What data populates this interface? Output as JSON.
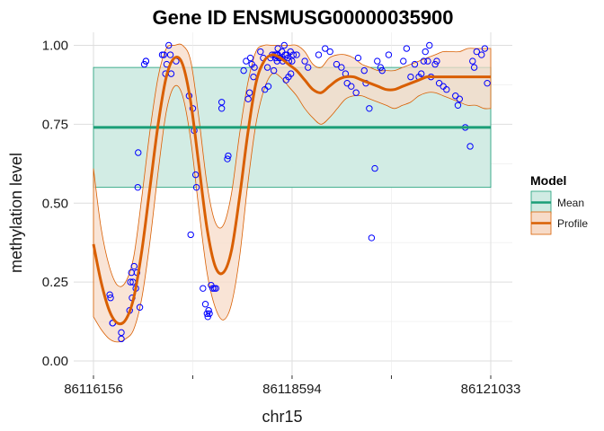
{
  "chart_data": {
    "type": "scatter",
    "title": "Gene ID ENSMUSG00000035900",
    "xlabel": "chr15",
    "ylabel": "methylation level",
    "xlim": [
      86116156,
      86121033
    ],
    "ylim": [
      0,
      1
    ],
    "x_ticks": [
      86116156,
      86118594,
      86121033
    ],
    "x_tick_labels": [
      "86116156",
      "86118594",
      "86121033"
    ],
    "y_ticks": [
      0,
      0.25,
      0.5,
      0.75,
      1
    ],
    "y_tick_labels": [
      "0.00",
      "0.25",
      "0.50",
      "0.75",
      "1.00"
    ],
    "grid": true,
    "legend": {
      "title": "Model",
      "position": "right",
      "entries": [
        "Mean",
        "Profile"
      ]
    },
    "colors": {
      "points": "#0000ff",
      "mean": "#1b9e77",
      "mean_band": "#d0ebe3",
      "profile": "#d95f02",
      "profile_band": "#f7dbc8"
    },
    "mean": {
      "value": 0.74,
      "lower": 0.55,
      "upper": 0.93
    },
    "profile": {
      "x": [
        86116156,
        86116250,
        86116350,
        86116450,
        86116550,
        86116650,
        86116750,
        86116850,
        86116950,
        86117050,
        86117150,
        86117250,
        86117350,
        86117450,
        86117550,
        86117650,
        86117750,
        86117850,
        86117950,
        86118050,
        86118150,
        86118250,
        86118350,
        86118450,
        86118550,
        86118650,
        86118750,
        86118850,
        86118950,
        86119050,
        86119150,
        86119250,
        86119350,
        86119450,
        86119550,
        86119650,
        86119750,
        86119850,
        86119950,
        86120050,
        86120150,
        86120250,
        86120350,
        86120450,
        86120550,
        86120650,
        86120750,
        86120850,
        86120950,
        86121033
      ],
      "y": [
        0.37,
        0.25,
        0.16,
        0.12,
        0.13,
        0.2,
        0.35,
        0.55,
        0.75,
        0.9,
        0.96,
        0.94,
        0.82,
        0.62,
        0.42,
        0.3,
        0.28,
        0.35,
        0.52,
        0.72,
        0.88,
        0.95,
        0.97,
        0.96,
        0.94,
        0.92,
        0.89,
        0.86,
        0.85,
        0.87,
        0.89,
        0.9,
        0.9,
        0.89,
        0.88,
        0.87,
        0.86,
        0.86,
        0.87,
        0.88,
        0.89,
        0.9,
        0.9,
        0.9,
        0.9,
        0.9,
        0.9,
        0.9,
        0.9,
        0.9
      ],
      "lower": [
        0.14,
        0.1,
        0.07,
        0.06,
        0.07,
        0.1,
        0.2,
        0.38,
        0.6,
        0.79,
        0.87,
        0.84,
        0.7,
        0.48,
        0.28,
        0.17,
        0.13,
        0.18,
        0.33,
        0.56,
        0.75,
        0.86,
        0.91,
        0.9,
        0.87,
        0.84,
        0.8,
        0.77,
        0.75,
        0.77,
        0.8,
        0.83,
        0.84,
        0.84,
        0.83,
        0.82,
        0.81,
        0.8,
        0.81,
        0.82,
        0.84,
        0.85,
        0.85,
        0.84,
        0.83,
        0.82,
        0.81,
        0.81,
        0.8,
        0.8
      ],
      "upper": [
        0.61,
        0.42,
        0.3,
        0.24,
        0.25,
        0.33,
        0.52,
        0.73,
        0.9,
        0.99,
        1.0,
        1.0,
        0.95,
        0.77,
        0.56,
        0.44,
        0.43,
        0.53,
        0.72,
        0.88,
        0.98,
        1.0,
        1.0,
        1.0,
        1.0,
        1.0,
        0.98,
        0.94,
        0.93,
        0.96,
        0.97,
        0.97,
        0.96,
        0.94,
        0.93,
        0.92,
        0.92,
        0.92,
        0.93,
        0.94,
        0.95,
        0.96,
        0.97,
        0.98,
        0.98,
        0.98,
        0.99,
        0.99,
        0.99,
        0.99
      ]
    },
    "points": {
      "x": [
        86116356,
        86116366,
        86116390,
        86116392,
        86116498,
        86116498,
        86116600,
        86116610,
        86116622,
        86116630,
        86116640,
        86116655,
        86116676,
        86116690,
        86116700,
        86116705,
        86116725,
        86116780,
        86116800,
        86116800,
        86117000,
        86117020,
        86117040,
        86117055,
        86117080,
        86117100,
        86117110,
        86117170,
        86117330,
        86117350,
        86117375,
        86117392,
        86117410,
        86117420,
        86117500,
        86117530,
        86117550,
        86117560,
        86117570,
        86117580,
        86117600,
        86117620,
        86117640,
        86117660,
        86117730,
        86117730,
        86117800,
        86117810,
        86118000,
        86118030,
        86118055,
        86118072,
        86118082,
        86118100,
        86118120,
        86118132,
        86118206,
        86118240,
        86118260,
        86118292,
        86118302,
        86118330,
        86118350,
        86118370,
        86118380,
        86118390,
        86118400,
        86118410,
        86118420,
        86118420,
        86118435,
        86118440,
        86118446,
        86118470,
        86118480,
        86118498,
        86118510,
        86118520,
        86118530,
        86118540,
        86118550,
        86118555,
        86118575,
        86118580,
        86118593,
        86118610,
        86118650,
        86118750,
        86118790,
        86118920,
        86119000,
        86119060,
        86119140,
        86119200,
        86119250,
        86119270,
        86119320,
        86119380,
        86119405,
        86119480,
        86119500,
        86119542,
        86119570,
        86119610,
        86119640,
        86119680,
        86119700,
        86119780,
        86119960,
        86120000,
        86120050,
        86120100,
        86120150,
        86120180,
        86120210,
        86120230,
        86120260,
        86120280,
        86120300,
        86120350,
        86120370,
        86120400,
        86120450,
        86120490,
        86120600,
        86120630,
        86120650,
        86120720,
        86120780,
        86120810,
        86120830,
        86120860,
        86120920,
        86120960,
        86120990
      ],
      "y": [
        0.21,
        0.2,
        0.12,
        0.12,
        0.09,
        0.07,
        0.16,
        0.25,
        0.28,
        0.2,
        0.25,
        0.3,
        0.23,
        0.28,
        0.55,
        0.66,
        0.17,
        0.94,
        0.95,
        0.95,
        0.97,
        0.97,
        0.91,
        0.94,
        1.0,
        0.97,
        0.91,
        0.95,
        0.84,
        0.4,
        0.8,
        0.73,
        0.59,
        0.55,
        0.23,
        0.18,
        0.15,
        0.14,
        0.16,
        0.15,
        0.24,
        0.23,
        0.23,
        0.23,
        0.8,
        0.82,
        0.64,
        0.65,
        0.92,
        0.95,
        0.83,
        0.85,
        0.96,
        0.94,
        0.9,
        0.93,
        0.98,
        0.96,
        0.86,
        0.93,
        0.87,
        0.96,
        0.97,
        0.92,
        0.97,
        0.96,
        0.97,
        0.95,
        0.97,
        0.99,
        0.96,
        0.96,
        0.96,
        0.98,
        0.95,
        1.0,
        0.97,
        0.89,
        0.97,
        0.96,
        0.9,
        0.95,
        0.98,
        0.91,
        0.95,
        0.97,
        0.97,
        0.95,
        0.93,
        0.97,
        0.99,
        0.98,
        0.94,
        0.93,
        0.91,
        0.88,
        0.87,
        0.85,
        0.96,
        0.92,
        0.88,
        0.8,
        0.39,
        0.61,
        0.95,
        0.93,
        0.92,
        0.97,
        0.95,
        0.99,
        0.9,
        0.94,
        0.9,
        0.91,
        0.95,
        0.98,
        0.95,
        1.0,
        0.9,
        0.94,
        0.95,
        0.88,
        0.87,
        0.86,
        0.84,
        0.81,
        0.83,
        0.74,
        0.68,
        0.95,
        0.93,
        0.98,
        0.97,
        0.99,
        0.88
      ]
    }
  }
}
